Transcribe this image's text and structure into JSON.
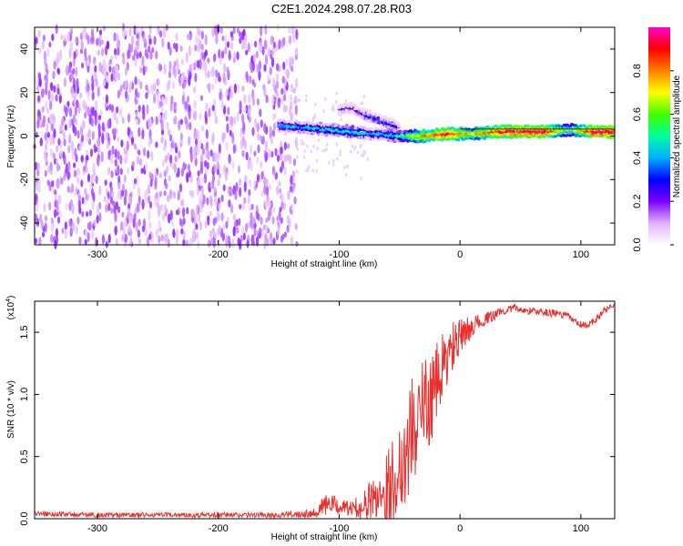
{
  "title": "C2E1.2024.298.07.28.R03",
  "chart_data": [
    {
      "type": "heatmap",
      "xlabel": "Height of straight line (km)",
      "ylabel": "Frequency (Hz)",
      "xlim": [
        -352,
        128
      ],
      "ylim": [
        -50,
        50
      ],
      "xticks": [
        -300,
        -200,
        -100,
        0,
        100
      ],
      "yticks": [
        -40,
        -20,
        0,
        20,
        40
      ],
      "colorbar": {
        "label": "Normalized spectral amplitude",
        "range": [
          0.0,
          1.0
        ],
        "ticks": [
          "0.0",
          "0.2",
          "0.4",
          "0.6",
          "0.8"
        ],
        "colors": [
          "#ffffff",
          "#e0b0ff",
          "#7b00ff",
          "#0000ff",
          "#00b0ff",
          "#00ffa0",
          "#40ff00",
          "#ffff00",
          "#ff8000",
          "#ff0000",
          "#ff00c8"
        ]
      },
      "noise_region": {
        "x_range": [
          -352,
          -135
        ],
        "y_range": [
          -50,
          50
        ],
        "amplitude": 0.15
      },
      "signal_trace": {
        "x": [
          -150,
          -130,
          -110,
          -90,
          -70,
          -50,
          -30,
          -10,
          10,
          30,
          50,
          70,
          90,
          110,
          128
        ],
        "y": [
          5,
          4,
          3,
          2,
          1,
          0,
          0,
          1,
          1,
          2,
          2,
          2,
          3,
          2,
          2
        ],
        "amplitude": [
          0.4,
          0.45,
          0.45,
          0.5,
          0.4,
          0.5,
          0.8,
          0.9,
          0.7,
          0.9,
          0.95,
          0.95,
          0.6,
          0.95,
          0.95
        ]
      },
      "branch_trace": {
        "x": [
          -100,
          -90,
          -80,
          -70,
          -60,
          -50
        ],
        "y": [
          12,
          13,
          10,
          8,
          6,
          4
        ],
        "amplitude": [
          0.2,
          0.25,
          0.3,
          0.35,
          0.3,
          0.3
        ]
      }
    },
    {
      "type": "line",
      "xlabel": "Height of straight line (km)",
      "ylabel": "SNR (10 * v/v)",
      "y_multiplier": "(x10",
      "y_multiplier_exp": "4",
      "xlim": [
        -352,
        128
      ],
      "ylim": [
        0,
        1.75
      ],
      "xticks": [
        -300,
        -200,
        -100,
        0,
        100
      ],
      "yticks": [
        "0.0",
        "0.5",
        "1.0",
        "1.5"
      ],
      "color": "#e8312f",
      "series": [
        {
          "x": [
            -352,
            -300,
            -250,
            -200,
            -150,
            -120,
            -110,
            -100,
            -90,
            -80,
            -70,
            -60,
            -50,
            -45,
            -40,
            -35,
            -30,
            -25,
            -20,
            -15,
            -10,
            -5,
            0,
            5,
            10,
            15,
            20,
            25,
            30,
            35,
            40,
            45,
            50,
            60,
            70,
            80,
            90,
            95,
            100,
            105,
            110,
            115,
            120,
            128
          ],
          "y": [
            0.04,
            0.03,
            0.03,
            0.03,
            0.03,
            0.05,
            0.12,
            0.1,
            0.08,
            0.1,
            0.18,
            0.25,
            0.4,
            0.55,
            0.7,
            0.8,
            0.9,
            0.95,
            1.05,
            1.2,
            1.3,
            1.4,
            1.45,
            1.5,
            1.55,
            1.58,
            1.6,
            1.62,
            1.65,
            1.67,
            1.68,
            1.7,
            1.68,
            1.67,
            1.66,
            1.65,
            1.63,
            1.58,
            1.56,
            1.55,
            1.58,
            1.63,
            1.68,
            1.72
          ],
          "noise": [
            0.02,
            0.02,
            0.02,
            0.02,
            0.02,
            0.04,
            0.1,
            0.06,
            0.06,
            0.12,
            0.2,
            0.3,
            0.4,
            0.45,
            0.45,
            0.45,
            0.4,
            0.35,
            0.35,
            0.3,
            0.25,
            0.2,
            0.15,
            0.12,
            0.08,
            0.06,
            0.05,
            0.05,
            0.04,
            0.03,
            0.03,
            0.03,
            0.03,
            0.03,
            0.03,
            0.03,
            0.03,
            0.03,
            0.03,
            0.03,
            0.03,
            0.03,
            0.03,
            0.03
          ]
        }
      ]
    }
  ]
}
